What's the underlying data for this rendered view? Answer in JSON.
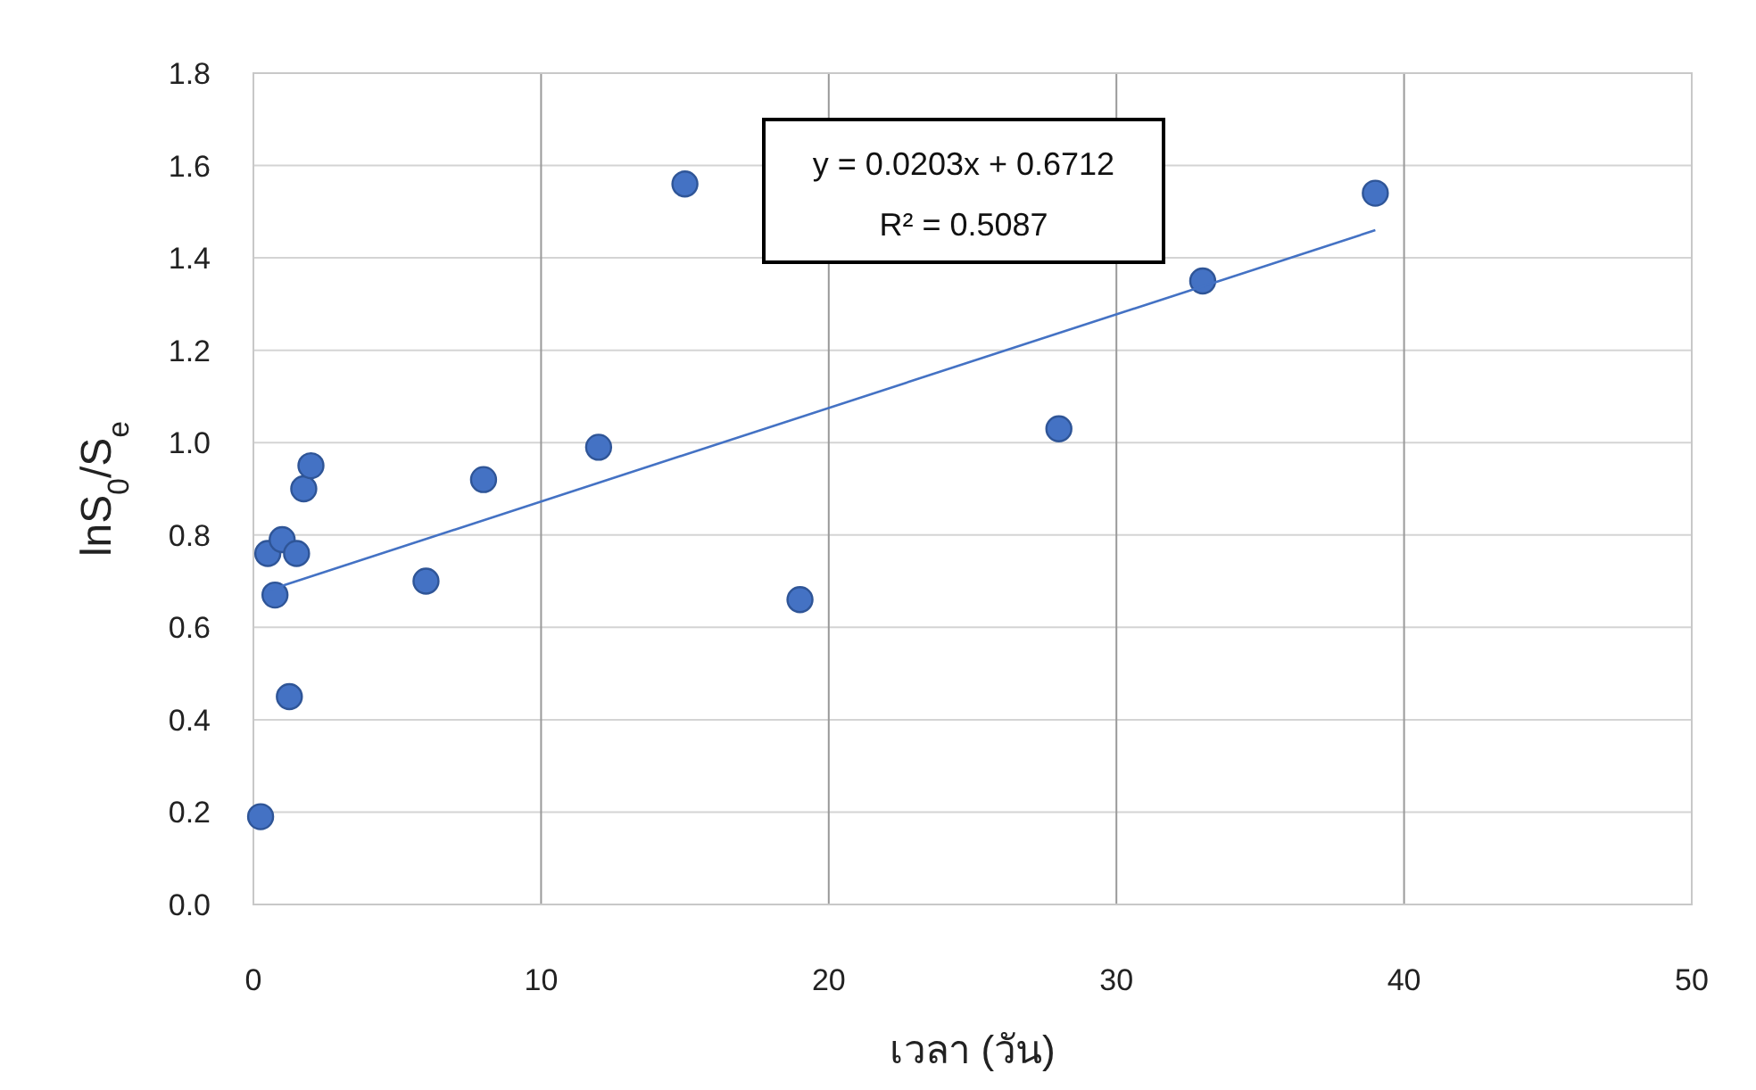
{
  "chart_data": {
    "type": "scatter",
    "xlabel": "เวลา (วัน)",
    "ylabel": "lnS$_{0}$/S$_{e}$",
    "xlim": [
      0,
      50
    ],
    "xticks": [
      0,
      10,
      20,
      30,
      40,
      50
    ],
    "ylim": [
      0,
      1.8
    ],
    "yticks": [
      {
        "value": 0,
        "label": "0.0"
      },
      0.2,
      0.4,
      0.6,
      0.8,
      {
        "value": 1,
        "label": "1.0"
      },
      1.2,
      1.4,
      1.6,
      1.8
    ],
    "grid": true,
    "marker": "circle",
    "annotations": [
      "y = 0.0203x + 0.6712",
      "R² = 0.5087"
    ],
    "series": [
      {
        "type": "scatter",
        "color": "#4472c4",
        "x": [
          0.25,
          0.5,
          0.75,
          1.0,
          1.25,
          1.5,
          1.75,
          2.0,
          6,
          8,
          12,
          15,
          19,
          28,
          33,
          39
        ],
        "values": [
          0.19,
          0.76,
          0.67,
          0.79,
          0.45,
          0.76,
          0.9,
          0.95,
          0.7,
          0.92,
          0.99,
          1.56,
          0.66,
          1.03,
          1.35,
          1.54
        ]
      },
      {
        "type": "line",
        "color": "#4472c4",
        "marker": "none",
        "x": [
          0.5,
          39
        ],
        "values": [
          0.68,
          1.46
        ]
      }
    ]
  }
}
